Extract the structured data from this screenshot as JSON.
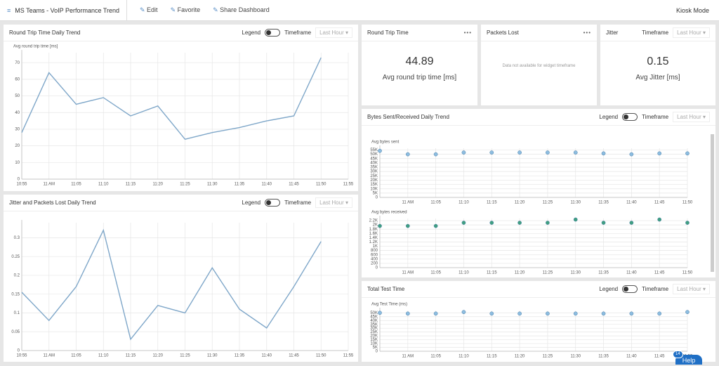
{
  "header": {
    "title": "MS Teams - VoIP Performance Trend",
    "actions": [
      "Edit",
      "Favorite",
      "Share Dashboard"
    ],
    "kiosk": "Kiosk Mode"
  },
  "widgets": [
    {
      "title": "Round Trip Time Daily Trend",
      "legend_label": "Legend",
      "timeframe_label": "Timeframe",
      "timeframe_value": "Last Hour",
      "chart": {
        "type": "line",
        "ylabel": "Avg round trip time [ms]",
        "color": "#7fa7c9",
        "categories": [
          "10:55",
          "11 AM",
          "11:05",
          "11:10",
          "11:15",
          "11:20",
          "11:25",
          "11:30",
          "11:35",
          "11:40",
          "11:45",
          "11:50",
          "11:55"
        ],
        "values": [
          28,
          64,
          45,
          49,
          38,
          44,
          24,
          28,
          31,
          35,
          38,
          73,
          null
        ],
        "ylim": [
          0,
          76
        ],
        "yticks": [
          0,
          10,
          20,
          30,
          40,
          50,
          60,
          70
        ]
      }
    },
    {
      "title": "Jitter and Packets Lost Daily Trend",
      "legend_label": "Legend",
      "timeframe_label": "Timeframe",
      "timeframe_value": "Last Hour",
      "chart": {
        "type": "line",
        "ylabel": null,
        "color": "#7fa7c9",
        "categories": [
          "10:55",
          "11 AM",
          "11:05",
          "11:10",
          "11:15",
          "11:20",
          "11:25",
          "11:30",
          "11:35",
          "11:40",
          "11:45",
          "11:50",
          "11:55"
        ],
        "values": [
          0.155,
          0.08,
          0.17,
          0.32,
          0.03,
          0.12,
          0.1,
          0.22,
          0.11,
          0.06,
          0.17,
          0.29,
          null
        ],
        "ylim": [
          0,
          0.34
        ],
        "yticks": [
          0,
          0.05,
          0.1,
          0.15,
          0.2,
          0.25,
          0.3
        ]
      }
    },
    {
      "title": "Round Trip Time",
      "value": "44.89",
      "label": "Avg round trip time [ms]"
    },
    {
      "title": "Packets Lost",
      "message": "Data not available for widget timeframe"
    },
    {
      "title": "Jitter",
      "timeframe_label": "Timeframe",
      "timeframe_value": "Last Hour",
      "value": "0.15",
      "label": "Avg Jitter [ms]"
    },
    {
      "title": "Bytes Sent/Received Daily Trend",
      "legend_label": "Legend",
      "timeframe_label": "Timeframe",
      "timeframe_value": "Last Hour",
      "charts": [
        {
          "type": "scatter",
          "ylabel": "Avg bytes sent",
          "color": "#8dbde0",
          "categories": [
            null,
            "11 AM",
            "11:05",
            "11:10",
            "11:15",
            "11:20",
            "11:25",
            "11:30",
            "11:35",
            "11:40",
            "11:45",
            "11:50"
          ],
          "values": [
            54000,
            50000,
            50000,
            52000,
            52000,
            52000,
            52000,
            52000,
            51000,
            50000,
            51000,
            51000
          ],
          "ylim": [
            0,
            57000
          ],
          "yticks": [
            0,
            {
              "value": 5000,
              "label": "5K"
            },
            {
              "value": 10000,
              "label": "10K"
            },
            {
              "value": 15000,
              "label": "15K"
            },
            {
              "value": 20000,
              "label": "20K"
            },
            {
              "value": 25000,
              "label": "25K"
            },
            {
              "value": 30000,
              "label": "30K"
            },
            {
              "value": 35000,
              "label": "35K"
            },
            {
              "value": 40000,
              "label": "40K"
            },
            {
              "value": 45000,
              "label": "45K"
            },
            {
              "value": 50000,
              "label": "50K"
            },
            {
              "value": 55000,
              "label": "55K"
            }
          ]
        },
        {
          "type": "scatter",
          "ylabel": "Avg bytes received",
          "color": "#3f9f80",
          "categories": [
            null,
            "11 AM",
            "11:05",
            "11:10",
            "11:15",
            "11:20",
            "11:25",
            "11:30",
            "11:35",
            "11:40",
            "11:45",
            "11:50"
          ],
          "values": [
            1950,
            1950,
            1950,
            2100,
            2100,
            2100,
            2100,
            2250,
            2100,
            2100,
            2250,
            2100
          ],
          "ylim": [
            0,
            2300
          ],
          "yticks": [
            0,
            200,
            400,
            600,
            800,
            {
              "value": 1000,
              "label": "1K"
            },
            {
              "value": 1200,
              "label": "1.2K"
            },
            {
              "value": 1400,
              "label": "1.4K"
            },
            {
              "value": 1600,
              "label": "1.6K"
            },
            {
              "value": 1800,
              "label": "1.8K"
            },
            {
              "value": 2000,
              "label": "2K"
            },
            {
              "value": 2200,
              "label": "2.2K"
            }
          ]
        }
      ]
    },
    {
      "title": "Total Test Time",
      "legend_label": "Legend",
      "timeframe_label": "Timeframe",
      "timeframe_value": "Last Hour",
      "chart": {
        "type": "scatter",
        "ylabel": "Avg Test Time (ms)",
        "color": "#8dbde0",
        "categories": [
          null,
          "11 AM",
          "11:05",
          "11:10",
          "11:15",
          "11:20",
          "11:25",
          "11:30",
          "11:35",
          "11:40",
          "11:45",
          "11:50"
        ],
        "values": [
          50000,
          49000,
          49000,
          51000,
          49000,
          49000,
          49000,
          49000,
          49000,
          49000,
          49000,
          51000
        ],
        "ylim": [
          0,
          53000
        ],
        "yticks": [
          0,
          {
            "value": 5000,
            "label": "5K"
          },
          {
            "value": 10000,
            "label": "10K"
          },
          {
            "value": 15000,
            "label": "15K"
          },
          {
            "value": 20000,
            "label": "20K"
          },
          {
            "value": 25000,
            "label": "25K"
          },
          {
            "value": 30000,
            "label": "30K"
          },
          {
            "value": 35000,
            "label": "35K"
          },
          {
            "value": 40000,
            "label": "40K"
          },
          {
            "value": 45000,
            "label": "45K"
          },
          {
            "value": 50000,
            "label": "50K"
          }
        ]
      }
    }
  ],
  "help": {
    "label": "Help",
    "badge": "14"
  }
}
